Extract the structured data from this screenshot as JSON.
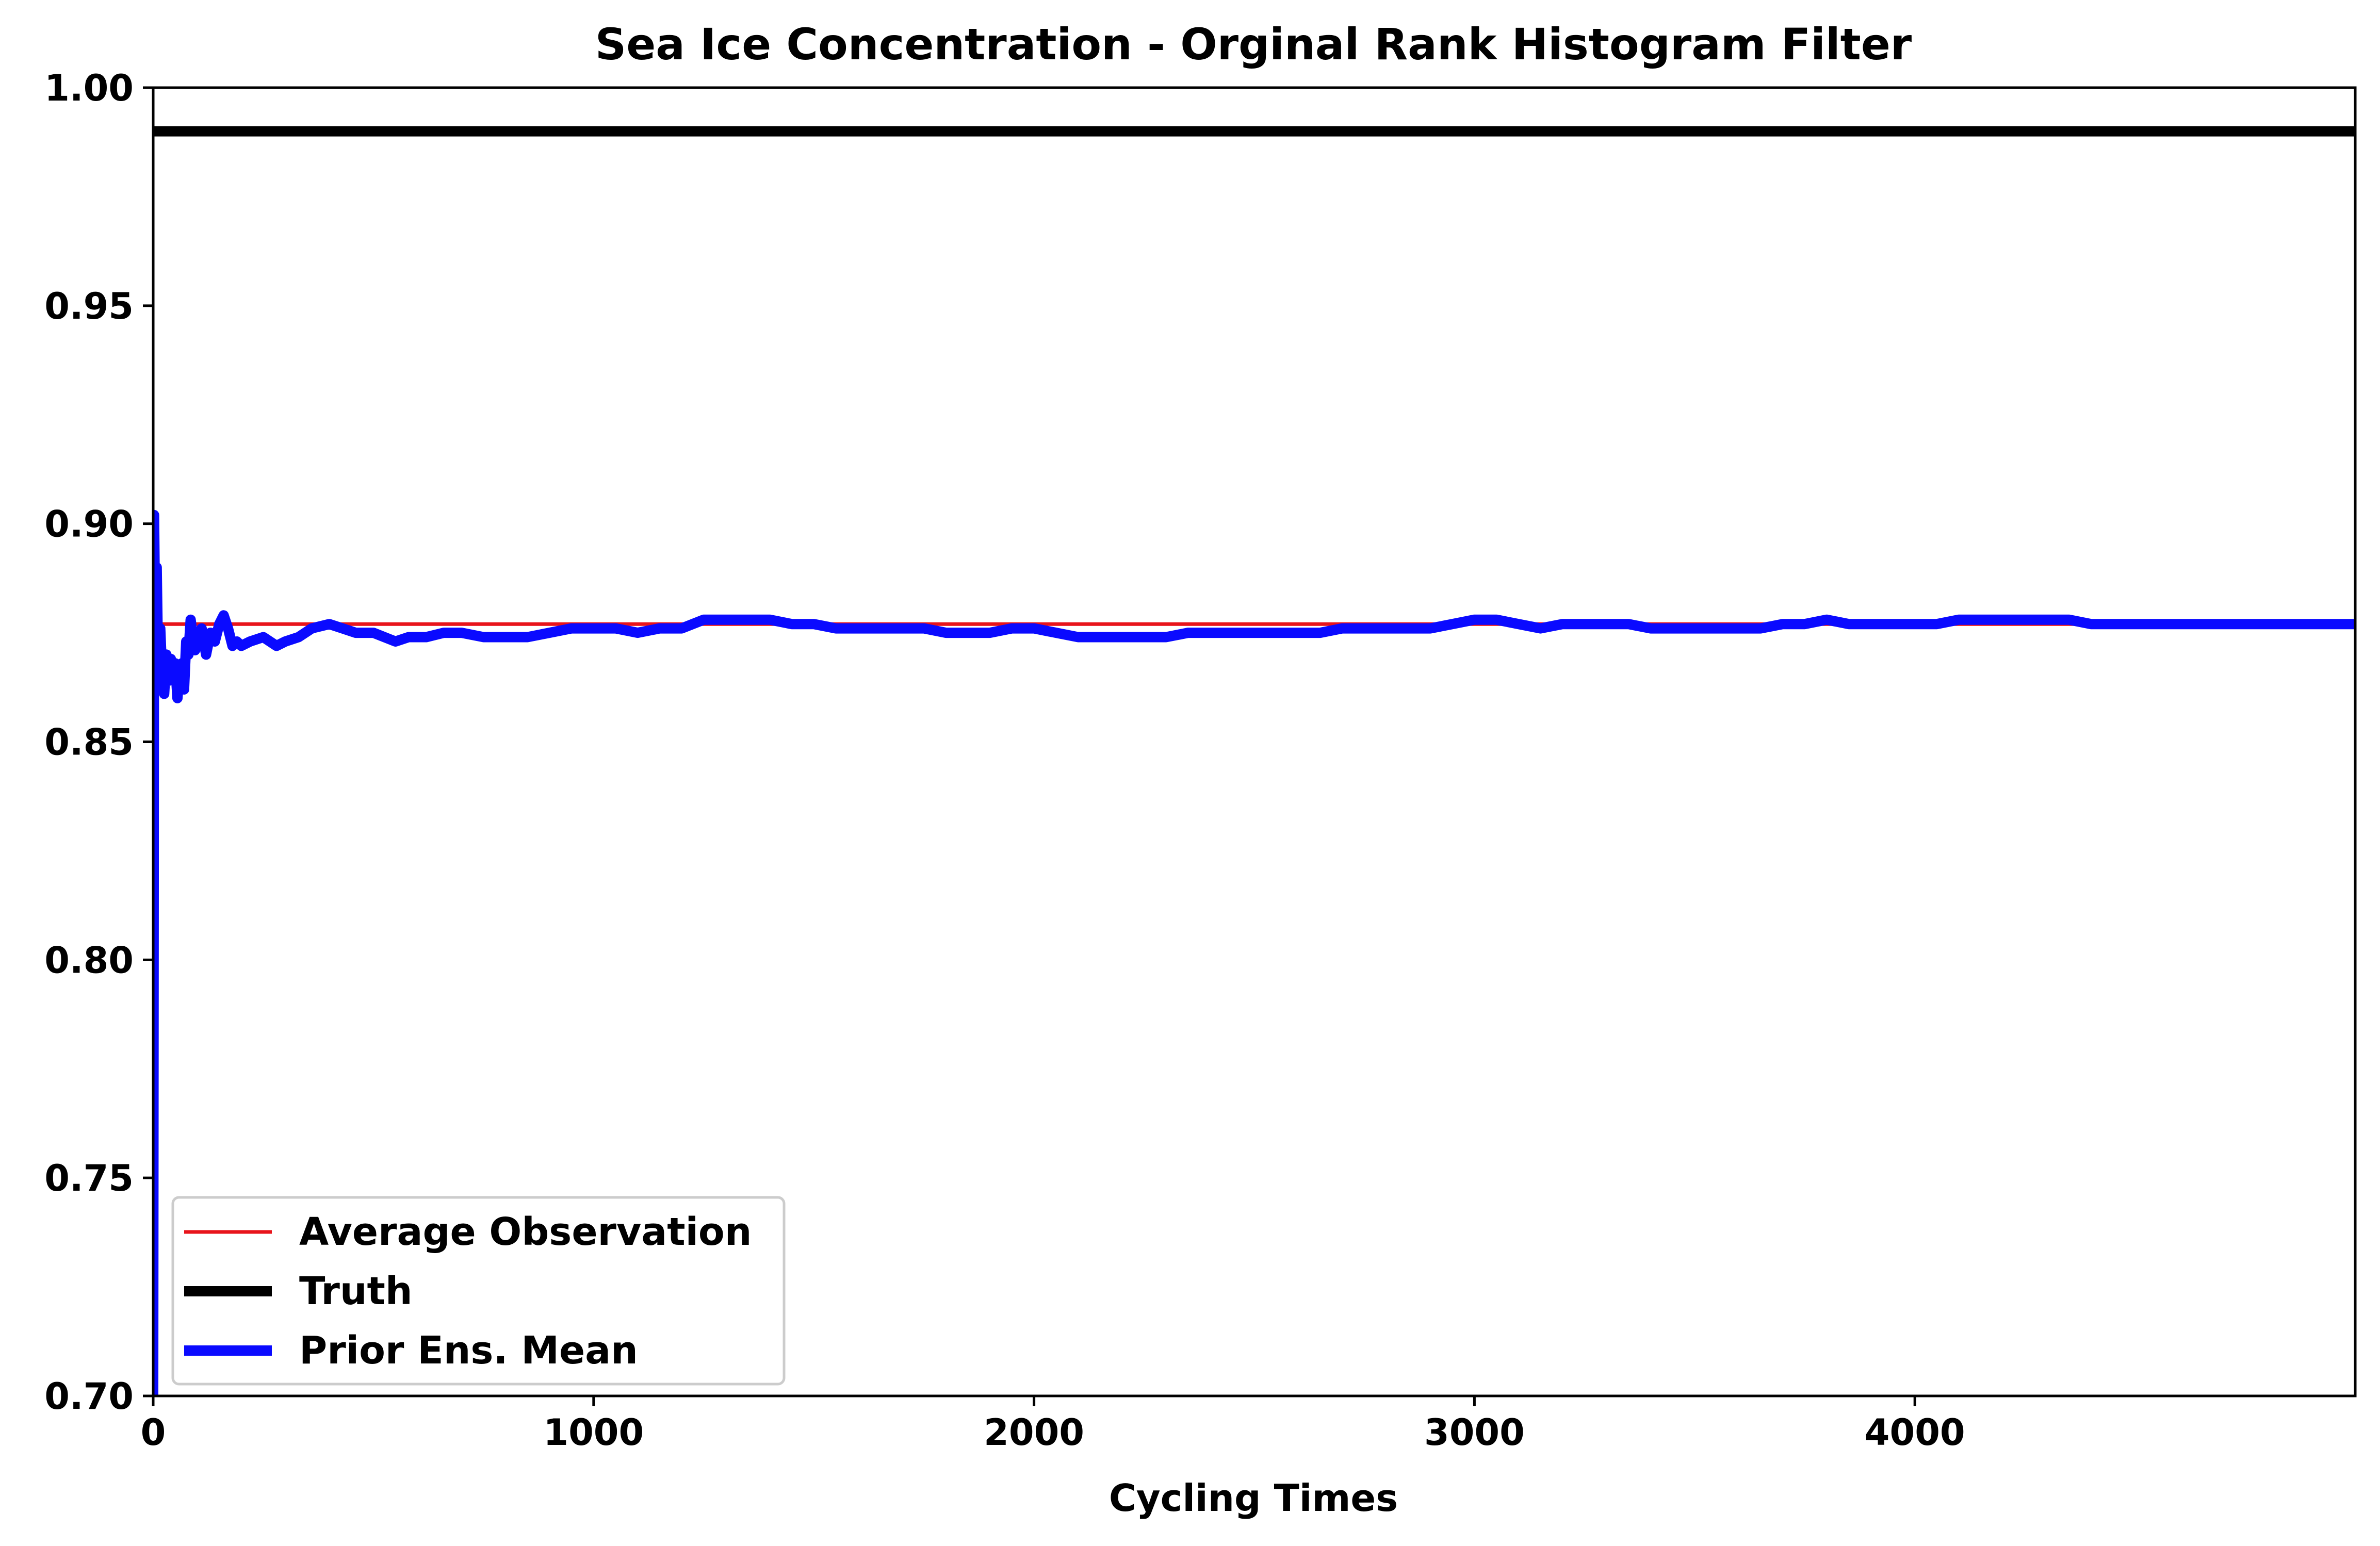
{
  "chart_data": {
    "type": "line",
    "title": "Sea Ice Concentration - Orginal Rank Histogram Filter",
    "xlabel": "Cycling Times",
    "ylabel": "",
    "xlim": [
      0,
      5000
    ],
    "ylim": [
      0.7,
      1.0
    ],
    "x_ticks": [
      0,
      1000,
      2000,
      3000,
      4000
    ],
    "x_tick_labels": [
      "0",
      "1000",
      "2000",
      "3000",
      "4000"
    ],
    "y_ticks": [
      0.7,
      0.75,
      0.8,
      0.85,
      0.9,
      0.95,
      1.0
    ],
    "y_tick_labels": [
      "0.70",
      "0.75",
      "0.80",
      "0.85",
      "0.90",
      "0.95",
      "1.00"
    ],
    "grid": false,
    "legend_position": "bottom-left",
    "series": [
      {
        "name": "Average Observation",
        "color": "#e8141b",
        "style": "thin",
        "x": [
          0,
          5000
        ],
        "y": [
          0.877,
          0.877
        ]
      },
      {
        "name": "Truth",
        "color": "#000000",
        "style": "thick",
        "x": [
          0,
          5000
        ],
        "y": [
          0.99,
          0.99
        ]
      },
      {
        "name": "Prior Ens. Mean",
        "color": "#0a0aff",
        "style": "thick",
        "x": [
          0,
          2,
          5,
          8,
          12,
          16,
          20,
          25,
          30,
          35,
          40,
          45,
          50,
          55,
          60,
          65,
          70,
          75,
          80,
          85,
          90,
          95,
          100,
          110,
          120,
          130,
          140,
          150,
          160,
          170,
          180,
          190,
          200,
          220,
          250,
          280,
          300,
          330,
          360,
          400,
          430,
          460,
          500,
          550,
          580,
          620,
          660,
          700,
          750,
          800,
          850,
          900,
          950,
          1000,
          1050,
          1100,
          1150,
          1200,
          1250,
          1300,
          1350,
          1400,
          1450,
          1500,
          1550,
          1600,
          1650,
          1700,
          1750,
          1800,
          1850,
          1900,
          1950,
          2000,
          2050,
          2100,
          2150,
          2200,
          2250,
          2300,
          2350,
          2400,
          2450,
          2500,
          2550,
          2600,
          2650,
          2700,
          2750,
          2800,
          2850,
          2900,
          2950,
          3000,
          3050,
          3100,
          3150,
          3200,
          3250,
          3300,
          3350,
          3400,
          3450,
          3500,
          3550,
          3600,
          3650,
          3700,
          3750,
          3800,
          3850,
          3900,
          3950,
          4000,
          4050,
          4100,
          4150,
          4200,
          4250,
          4300,
          4350,
          4400,
          4450,
          4500,
          4550,
          4600,
          4650,
          4700,
          4750,
          4800,
          4850,
          4900,
          4950,
          5000
        ],
        "y": [
          0.7,
          0.902,
          0.87,
          0.89,
          0.862,
          0.876,
          0.866,
          0.861,
          0.87,
          0.864,
          0.869,
          0.866,
          0.868,
          0.86,
          0.866,
          0.868,
          0.862,
          0.873,
          0.87,
          0.878,
          0.874,
          0.871,
          0.872,
          0.876,
          0.87,
          0.875,
          0.873,
          0.877,
          0.879,
          0.876,
          0.872,
          0.873,
          0.872,
          0.873,
          0.874,
          0.872,
          0.873,
          0.874,
          0.876,
          0.877,
          0.876,
          0.875,
          0.875,
          0.873,
          0.874,
          0.874,
          0.875,
          0.875,
          0.874,
          0.874,
          0.874,
          0.875,
          0.876,
          0.876,
          0.876,
          0.875,
          0.876,
          0.876,
          0.878,
          0.878,
          0.878,
          0.878,
          0.877,
          0.877,
          0.876,
          0.876,
          0.876,
          0.876,
          0.876,
          0.875,
          0.875,
          0.875,
          0.876,
          0.876,
          0.875,
          0.874,
          0.874,
          0.874,
          0.874,
          0.874,
          0.875,
          0.875,
          0.875,
          0.875,
          0.875,
          0.875,
          0.875,
          0.876,
          0.876,
          0.876,
          0.876,
          0.876,
          0.877,
          0.878,
          0.878,
          0.877,
          0.876,
          0.877,
          0.877,
          0.877,
          0.877,
          0.876,
          0.876,
          0.876,
          0.876,
          0.876,
          0.876,
          0.877,
          0.877,
          0.878,
          0.877,
          0.877,
          0.877,
          0.877,
          0.877,
          0.878,
          0.878,
          0.878,
          0.878,
          0.878,
          0.878,
          0.877,
          0.877,
          0.877,
          0.877,
          0.877,
          0.877,
          0.877,
          0.877,
          0.877,
          0.877,
          0.877,
          0.877,
          0.877
        ]
      }
    ]
  }
}
